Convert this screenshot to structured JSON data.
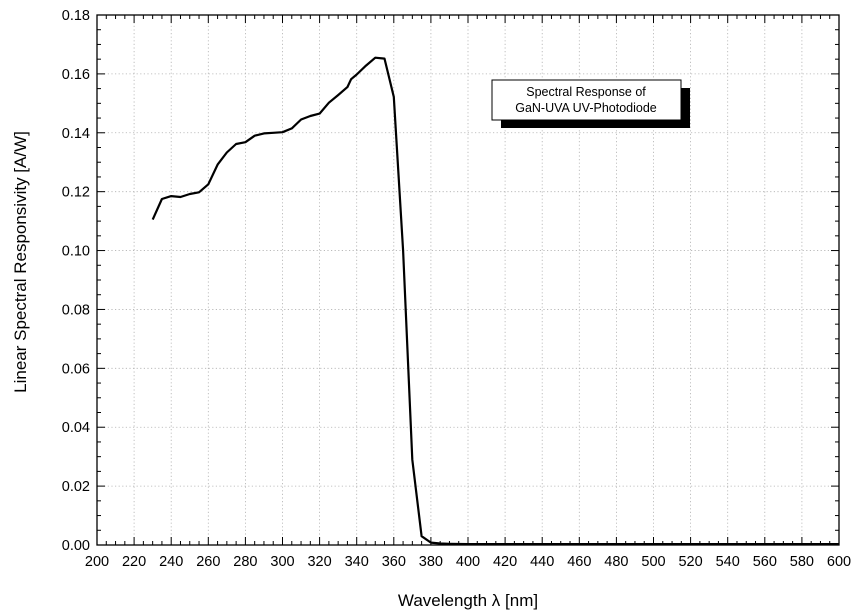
{
  "chart_data": {
    "type": "line",
    "xlabel": "Wavelength λ [nm]",
    "ylabel": "Linear Spectral Responsivity [A/W]",
    "xlim": [
      200,
      600
    ],
    "ylim": [
      0,
      0.18
    ],
    "grid": true,
    "x_ticks": [
      "200",
      "220",
      "240",
      "260",
      "280",
      "300",
      "320",
      "340",
      "360",
      "380",
      "400",
      "420",
      "440",
      "460",
      "480",
      "500",
      "520",
      "540",
      "560",
      "580",
      "600"
    ],
    "y_ticks": [
      "0.00",
      "0.02",
      "0.04",
      "0.06",
      "0.08",
      "0.10",
      "0.12",
      "0.14",
      "0.16",
      "0.18"
    ],
    "annotation": {
      "lines": [
        "Spectral Response of",
        "GaN-UVA UV-Photodiode"
      ],
      "placement": "upper-right"
    },
    "series": [
      {
        "x": [
          230,
          235,
          240,
          245,
          250,
          255,
          260,
          265,
          270,
          275,
          280,
          285,
          290,
          295,
          300,
          305,
          310,
          315,
          320,
          325,
          330,
          335,
          337,
          340,
          345,
          350,
          355,
          360,
          365,
          370,
          375,
          380,
          385,
          390,
          400,
          420,
          450,
          500,
          550,
          600
        ],
        "y": [
          0.1105,
          0.1175,
          0.1185,
          0.1182,
          0.1192,
          0.1198,
          0.1225,
          0.1292,
          0.1333,
          0.1362,
          0.1368,
          0.139,
          0.1398,
          0.14,
          0.1402,
          0.1415,
          0.1445,
          0.1457,
          0.1465,
          0.1502,
          0.1528,
          0.1555,
          0.1582,
          0.1598,
          0.1628,
          0.1655,
          0.1652,
          0.1522,
          0.1,
          0.029,
          0.003,
          0.0008,
          0.0005,
          0.0004,
          0.0003,
          0.0003,
          0.0003,
          0.0003,
          0.0003,
          0.0003
        ]
      }
    ],
    "colors": {
      "line": "#000000",
      "grid": "#b0b0b0",
      "axis": "#000000"
    }
  }
}
